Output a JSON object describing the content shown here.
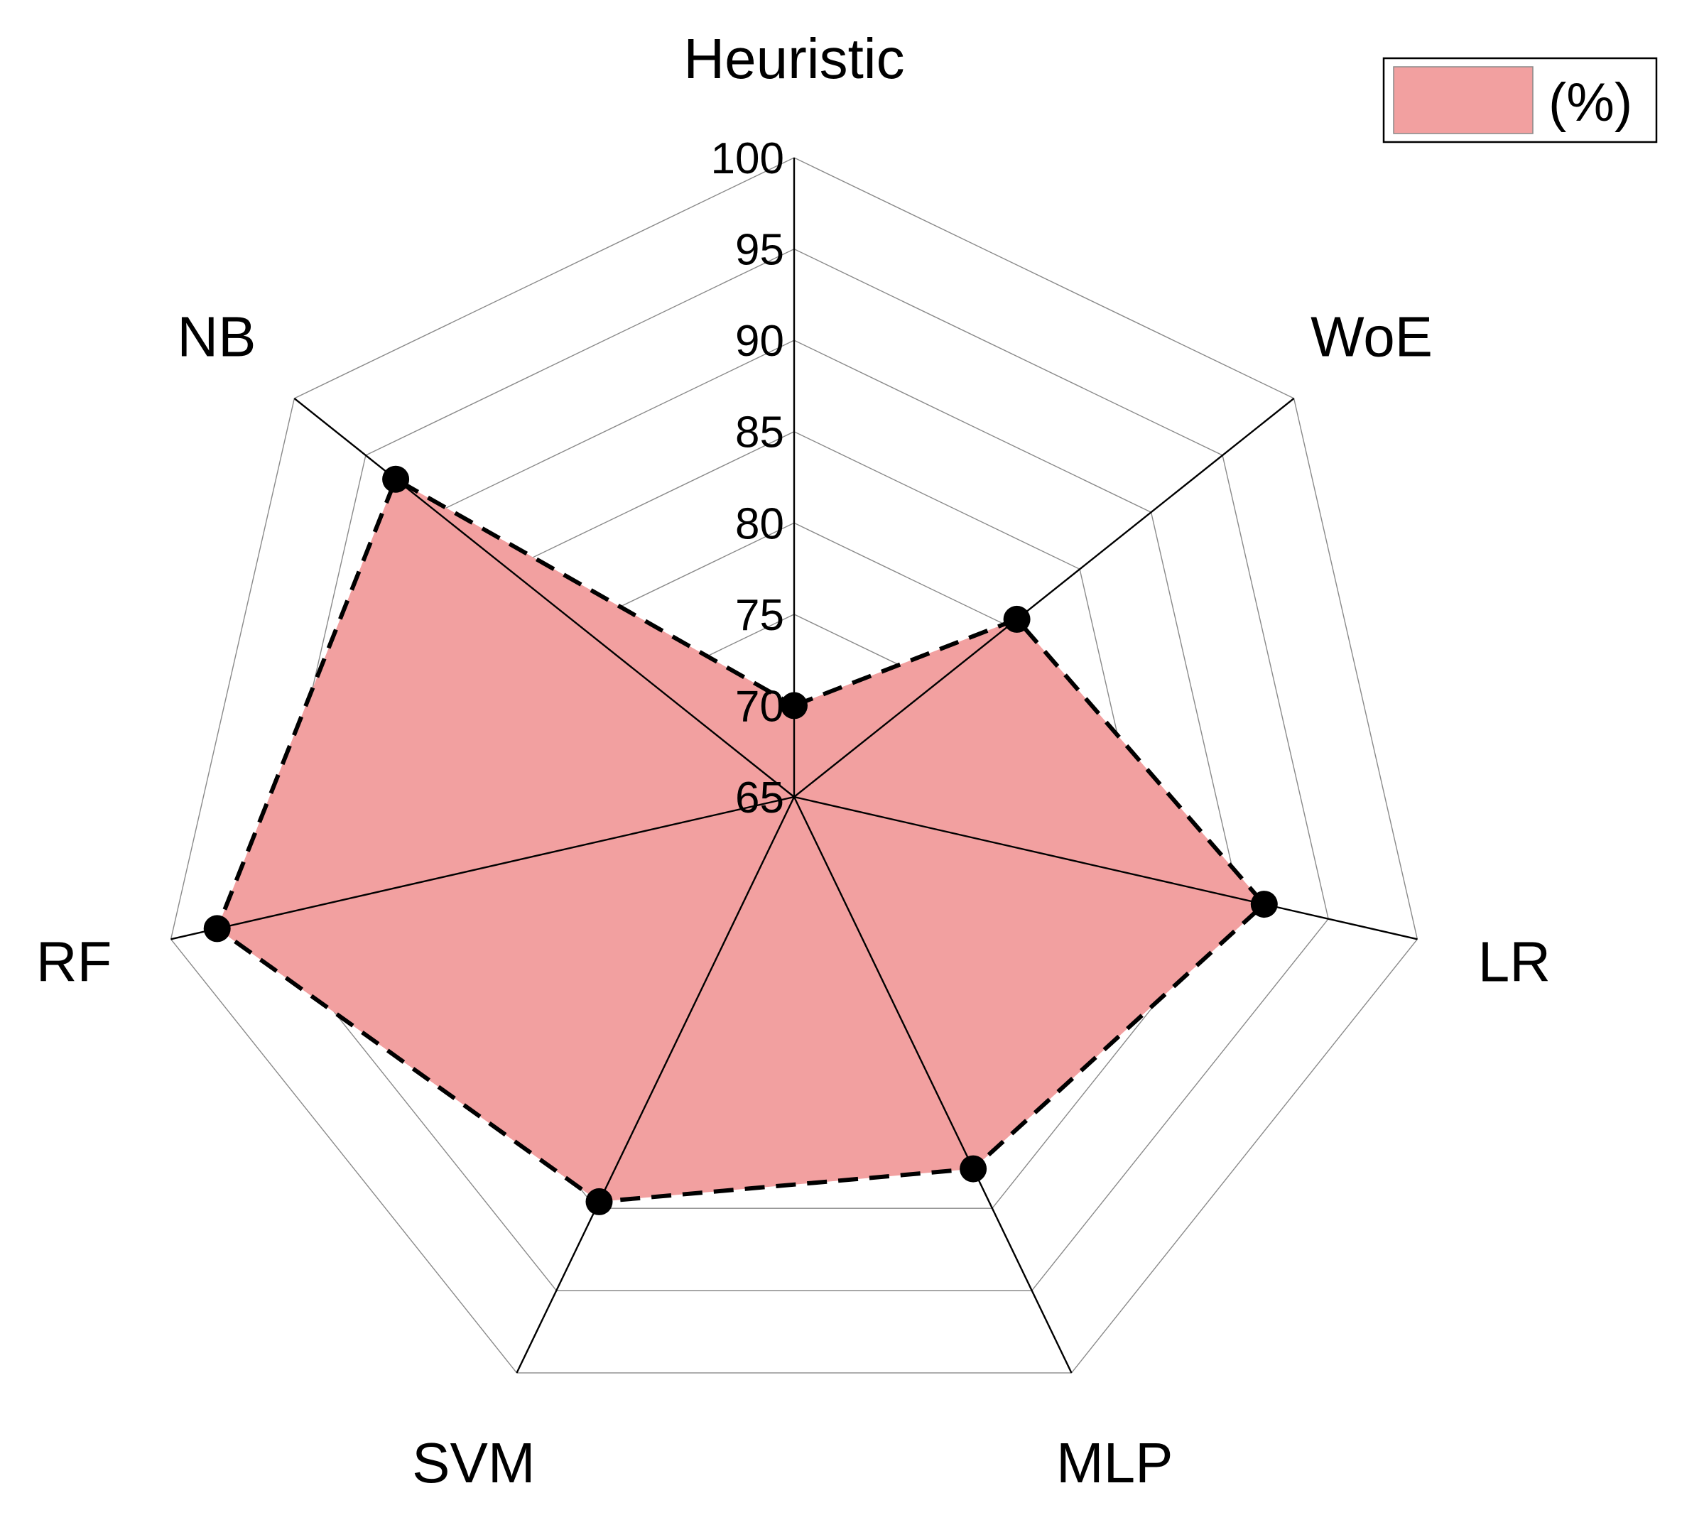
{
  "chart_data": {
    "type": "radar",
    "title": "",
    "categories": [
      "Heuristic",
      "WoE",
      "LR",
      "MLP",
      "SVM",
      "RF",
      "NB"
    ],
    "series": [
      {
        "name": "(%)",
        "values": [
          70.0,
          80.6,
          91.4,
          87.6,
          89.6,
          97.4,
          92.9
        ]
      }
    ],
    "rlim": [
      65,
      100
    ],
    "r_ticks": [
      65,
      70,
      75,
      80,
      85,
      90,
      95,
      100
    ],
    "grid": true,
    "legend_position": "top-right",
    "colors": {
      "fill": "#f2a0a0",
      "line": "#000000",
      "grid": "#8a8a8a"
    }
  }
}
